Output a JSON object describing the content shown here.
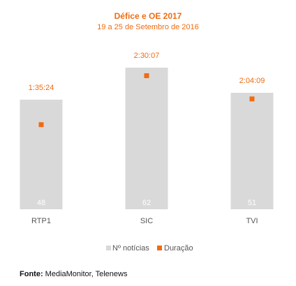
{
  "chart_data": {
    "type": "bar",
    "title": "Défice e OE 2017",
    "subtitle": "19 a 25 de Setembro de 2016",
    "categories": [
      "RTP1",
      "SIC",
      "TVI"
    ],
    "series": [
      {
        "name": "Nº notícias",
        "type": "bar",
        "values": [
          48,
          62,
          51
        ],
        "color": "#d9d9d9"
      },
      {
        "name": "Duração",
        "type": "marker",
        "values_seconds": [
          5724,
          9007,
          7449
        ],
        "labels": [
          "1:35:24",
          "2:30:07",
          "2:04:09"
        ],
        "color": "#ef6c12"
      }
    ],
    "bar_ylim": [
      0,
      62
    ],
    "duration_ylim_seconds": [
      0,
      9500
    ],
    "legend_position": "bottom",
    "grid": false
  },
  "source": {
    "label": "Fonte:",
    "text": "MediaMonitor, Telenews"
  }
}
